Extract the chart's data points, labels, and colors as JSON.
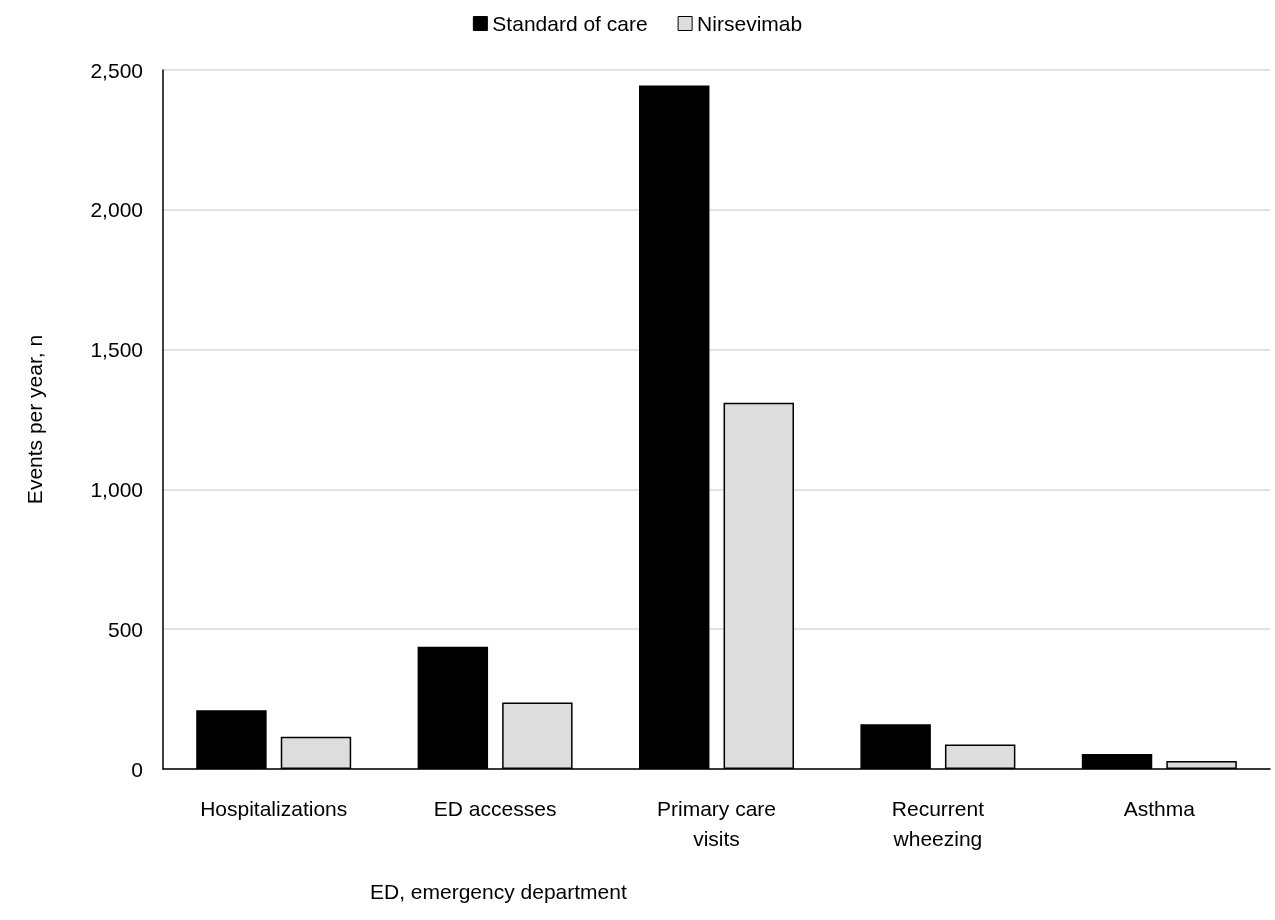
{
  "chart_data": {
    "type": "bar",
    "ylabel": "Events per year, n",
    "categories": [
      "Hospitalizations",
      "ED accesses",
      "Primary care\nvisits",
      "Recurrent\nwheezing",
      "Asthma"
    ],
    "series": [
      {
        "name": "Standard of care",
        "color": "#000000",
        "values": [
          210,
          437,
          2445,
          160,
          54
        ]
      },
      {
        "name": "Nirsevimab",
        "color": "#dddddd",
        "values": [
          115,
          238,
          1310,
          88,
          29
        ]
      }
    ],
    "ylim": [
      0,
      2500
    ],
    "yticks": [
      {
        "value": 0,
        "label": "0"
      },
      {
        "value": 500,
        "label": "500"
      },
      {
        "value": 1000,
        "label": "1,000"
      },
      {
        "value": 1500,
        "label": "1,500"
      },
      {
        "value": 2000,
        "label": "2,000"
      },
      {
        "value": 2500,
        "label": "2,500"
      }
    ],
    "grid": "y",
    "legend": "top",
    "annotations": [
      "ED, emergency department"
    ]
  }
}
